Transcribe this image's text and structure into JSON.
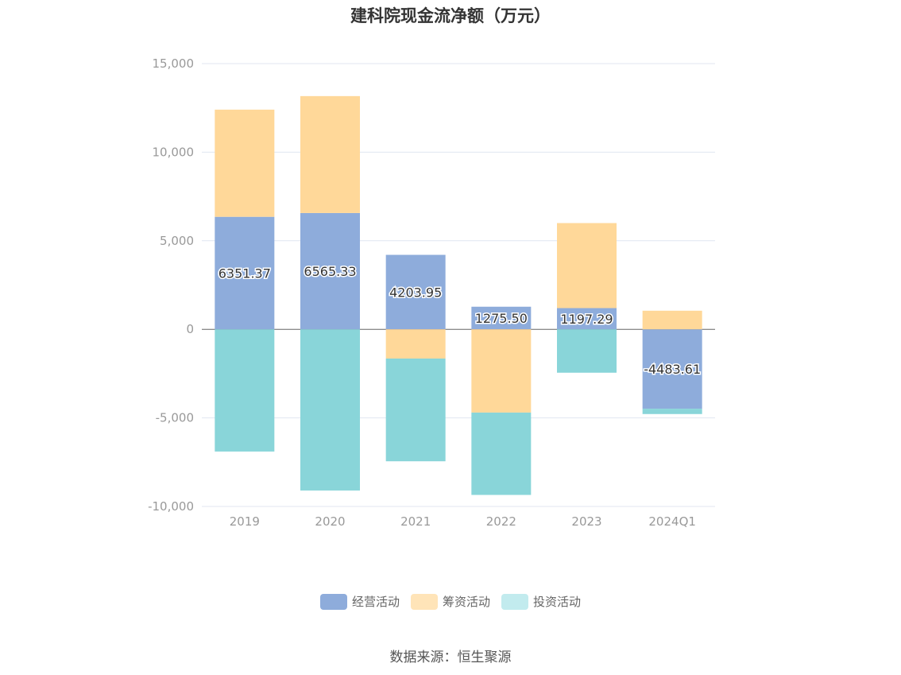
{
  "chart_data": {
    "type": "bar",
    "stacked": true,
    "title": "建科院现金流净额（万元）",
    "categories": [
      "2019",
      "2020",
      "2021",
      "2022",
      "2023",
      "2024Q1"
    ],
    "series": [
      {
        "name": "经营活动",
        "color": "#8eacdb",
        "values": [
          6351.37,
          6565.33,
          4203.95,
          1275.5,
          1197.29,
          -4483.61
        ],
        "labels": [
          "6351.37",
          "6565.33",
          "4203.95",
          "1275.50",
          "1197.29",
          "-4483.61"
        ]
      },
      {
        "name": "筹资活动",
        "color": "#ffd899",
        "values": [
          6050,
          6600,
          -1650,
          -4700,
          4800,
          1050
        ]
      },
      {
        "name": "投资活动",
        "color": "#89d5d9",
        "values": [
          -6900,
          -9100,
          -5800,
          -4650,
          -2450,
          -300
        ]
      }
    ],
    "yticks": [
      "15,000",
      "10,000",
      "5,000",
      "0",
      "-5,000",
      "-10,000"
    ],
    "ylim": [
      -10000,
      15000
    ],
    "grid": true,
    "legend_position": "bottom"
  },
  "legend_colors": [
    "#8eacdb",
    "#ffe4b8",
    "#c2ebee"
  ],
  "source": "数据来源：恒生聚源"
}
